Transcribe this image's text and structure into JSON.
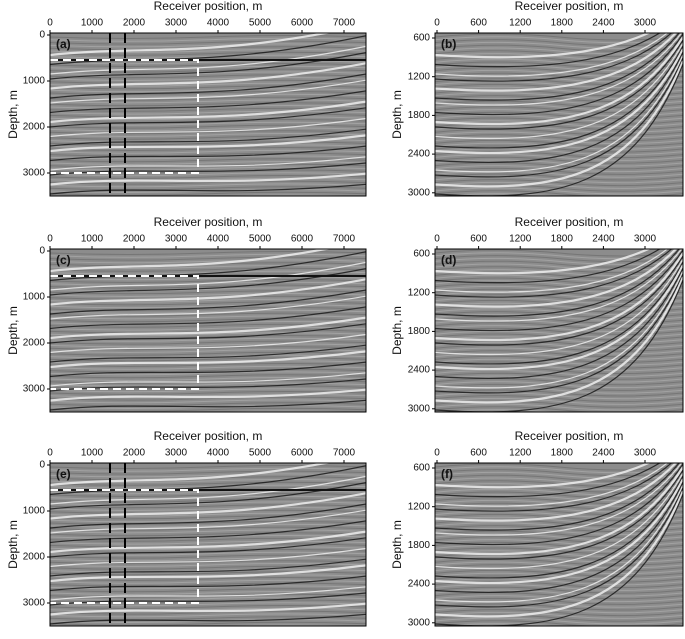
{
  "panels": [
    {
      "label": "(a)",
      "x_label": "Receiver position, m",
      "y_label": "Depth, m",
      "x_ticks": [
        0,
        1000,
        2000,
        3000,
        4000,
        5000,
        6000,
        7000
      ],
      "y_ticks": [
        0,
        1000,
        2000,
        3000
      ]
    },
    {
      "label": "(b)",
      "x_label": "Receiver position, m",
      "y_label": "Depth, m",
      "x_ticks": [
        0,
        600,
        1200,
        1800,
        2400,
        3000
      ],
      "y_ticks": [
        600,
        1200,
        1800,
        2400,
        3000
      ]
    },
    {
      "label": "(c)",
      "x_label": "Receiver position, m",
      "y_label": "Depth, m",
      "x_ticks": [
        0,
        1000,
        2000,
        3000,
        4000,
        5000,
        6000,
        7000
      ],
      "y_ticks": [
        0,
        1000,
        2000,
        3000
      ]
    },
    {
      "label": "(d)",
      "x_label": "Receiver position, m",
      "y_label": "Depth, m",
      "x_ticks": [
        0,
        600,
        1200,
        1800,
        2400,
        3000
      ],
      "y_ticks": [
        600,
        1200,
        1800,
        2400,
        3000
      ]
    },
    {
      "label": "(e)",
      "x_label": "Receiver position, m",
      "y_label": "Depth, m",
      "x_ticks": [
        0,
        1000,
        2000,
        3000,
        4000,
        5000,
        6000,
        7000
      ],
      "y_ticks": [
        0,
        1000,
        2000,
        3000
      ]
    },
    {
      "label": "(f)",
      "x_label": "Receiver position, m",
      "y_label": "Depth, m",
      "x_ticks": [
        0,
        600,
        1200,
        1800,
        2400,
        3000
      ],
      "y_ticks": [
        600,
        1200,
        1800,
        2400,
        3000
      ]
    }
  ]
}
